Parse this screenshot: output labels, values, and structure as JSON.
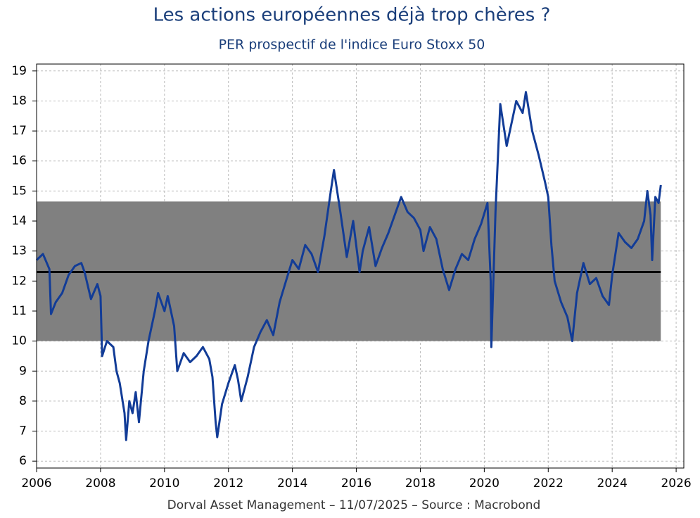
{
  "chart_data": {
    "type": "line",
    "title": "Les actions européennes déjà trop chères ?",
    "subtitle": "PER prospectif de l'indice Euro Stoxx 50",
    "footer": "Dorval Asset Management – 11/07/2025 –   Source : Macrobond",
    "xlim": [
      2006,
      2026.24
    ],
    "xticks": [
      2006,
      2008,
      2010,
      2012,
      2014,
      2016,
      2018,
      2020,
      2022,
      2024,
      2026
    ],
    "ylim": [
      5.77,
      19.23
    ],
    "yticks": [
      6,
      7,
      8,
      9,
      10,
      11,
      12,
      13,
      14,
      15,
      16,
      17,
      18,
      19
    ],
    "grid": true,
    "band": {
      "from": 10,
      "to": 14.65,
      "x": [
        2006,
        2025.52
      ],
      "color": "#808080"
    },
    "mean_line": {
      "value": 12.3,
      "x": [
        2006,
        2025.52
      ],
      "color": "#000000"
    },
    "series": [
      {
        "color": "#123c97",
        "x": [
          2006.0,
          2006.2,
          2006.4,
          2006.45,
          2006.6,
          2006.8,
          2007.0,
          2007.2,
          2007.4,
          2007.5,
          2007.7,
          2007.9,
          2008.0,
          2008.05,
          2008.2,
          2008.4,
          2008.5,
          2008.6,
          2008.75,
          2008.8,
          2008.9,
          2009.0,
          2009.1,
          2009.2,
          2009.35,
          2009.5,
          2009.7,
          2009.8,
          2010.0,
          2010.1,
          2010.3,
          2010.4,
          2010.6,
          2010.8,
          2011.0,
          2011.2,
          2011.4,
          2011.5,
          2011.6,
          2011.65,
          2011.8,
          2012.0,
          2012.2,
          2012.3,
          2012.4,
          2012.6,
          2012.8,
          2013.0,
          2013.2,
          2013.4,
          2013.6,
          2013.8,
          2014.0,
          2014.2,
          2014.4,
          2014.6,
          2014.8,
          2015.0,
          2015.2,
          2015.3,
          2015.5,
          2015.7,
          2015.9,
          2016.1,
          2016.2,
          2016.4,
          2016.6,
          2016.8,
          2017.0,
          2017.2,
          2017.4,
          2017.6,
          2017.8,
          2018.0,
          2018.1,
          2018.3,
          2018.5,
          2018.7,
          2018.9,
          2019.1,
          2019.3,
          2019.5,
          2019.7,
          2019.9,
          2020.1,
          2020.2,
          2020.22,
          2020.35,
          2020.5,
          2020.7,
          2020.9,
          2021.0,
          2021.2,
          2021.3,
          2021.5,
          2021.7,
          2021.9,
          2022.0,
          2022.1,
          2022.2,
          2022.4,
          2022.6,
          2022.75,
          2022.9,
          2023.1,
          2023.3,
          2023.5,
          2023.7,
          2023.9,
          2024.0,
          2024.2,
          2024.4,
          2024.6,
          2024.8,
          2025.0,
          2025.1,
          2025.2,
          2025.25,
          2025.35,
          2025.45,
          2025.52
        ],
        "values": [
          12.7,
          12.9,
          12.4,
          10.9,
          11.3,
          11.6,
          12.2,
          12.5,
          12.6,
          12.3,
          11.4,
          11.9,
          11.5,
          9.5,
          10.0,
          9.8,
          9.0,
          8.6,
          7.6,
          6.7,
          8.0,
          7.6,
          8.3,
          7.3,
          9.0,
          10.0,
          11.0,
          11.6,
          11.0,
          11.5,
          10.5,
          9.0,
          9.6,
          9.3,
          9.5,
          9.8,
          9.4,
          8.8,
          7.3,
          6.8,
          7.9,
          8.6,
          9.2,
          8.7,
          8.0,
          8.8,
          9.8,
          10.3,
          10.7,
          10.2,
          11.3,
          12.0,
          12.7,
          12.4,
          13.2,
          12.9,
          12.3,
          13.5,
          15.0,
          15.7,
          14.3,
          12.8,
          14.0,
          12.3,
          13.0,
          13.8,
          12.5,
          13.1,
          13.6,
          14.2,
          14.8,
          14.3,
          14.1,
          13.7,
          13.0,
          13.8,
          13.4,
          12.4,
          11.7,
          12.4,
          12.9,
          12.7,
          13.4,
          13.9,
          14.6,
          12.0,
          9.8,
          14.3,
          17.9,
          16.5,
          17.5,
          18.0,
          17.6,
          18.3,
          17.0,
          16.2,
          15.3,
          14.8,
          13.2,
          12.0,
          11.3,
          10.8,
          10.0,
          11.6,
          12.6,
          11.9,
          12.1,
          11.5,
          11.2,
          12.2,
          13.6,
          13.3,
          13.1,
          13.4,
          14.0,
          15.0,
          14.2,
          12.7,
          14.8,
          14.6,
          15.2
        ]
      }
    ]
  }
}
